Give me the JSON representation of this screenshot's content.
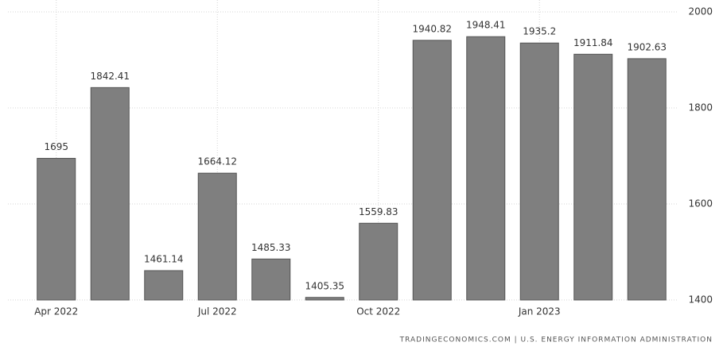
{
  "chart_data": {
    "type": "bar",
    "categories": [
      "Apr 2022",
      null,
      null,
      "Jul 2022",
      null,
      null,
      "Oct 2022",
      null,
      null,
      "Jan 2023",
      null,
      null
    ],
    "values": [
      1695,
      1842.41,
      1461.14,
      1664.12,
      1485.33,
      1405.35,
      1559.83,
      1940.82,
      1948.41,
      1935.2,
      1911.84,
      1902.63
    ],
    "color": "#7f7f7f",
    "ylim": [
      1400,
      2000
    ],
    "yticks": [
      1400,
      1600,
      1800,
      2000
    ],
    "grid": true,
    "source": "TRADINGECONOMICS.COM | U.S. ENERGY INFORMATION ADMINISTRATION"
  }
}
